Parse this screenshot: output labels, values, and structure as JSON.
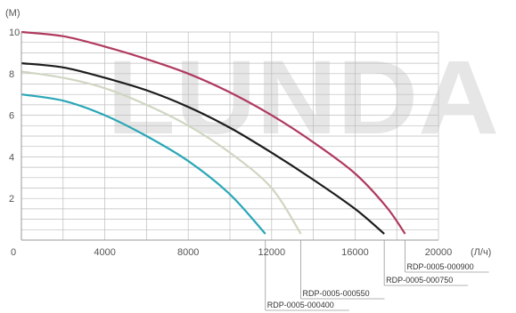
{
  "watermark": "LUNDA",
  "chart_data": {
    "type": "line",
    "y_unit": "(М)",
    "x_unit": "(Л/ч)",
    "xlim": [
      0,
      20000
    ],
    "ylim": [
      0,
      10
    ],
    "grid": true,
    "x_ticks": [
      "0",
      "4000",
      "8000",
      "12000",
      "16000",
      "20000"
    ],
    "x_tick_values": [
      0,
      4000,
      8000,
      12000,
      16000,
      20000
    ],
    "y_ticks": [
      "2",
      "4",
      "6",
      "8",
      "10"
    ],
    "y_tick_values": [
      2,
      4,
      6,
      8,
      10
    ],
    "series": [
      {
        "name": "RDP-0005-000400",
        "color": "#2aa7b7",
        "points": [
          [
            0,
            7.0
          ],
          [
            2000,
            6.7
          ],
          [
            4000,
            6.0
          ],
          [
            6000,
            5.0
          ],
          [
            8000,
            3.8
          ],
          [
            10000,
            2.2
          ],
          [
            11700,
            0.3
          ]
        ]
      },
      {
        "name": "RDP-0005-000550",
        "color": "#cfd6c2",
        "points": [
          [
            0,
            8.1
          ],
          [
            2000,
            7.8
          ],
          [
            4000,
            7.3
          ],
          [
            6000,
            6.5
          ],
          [
            8000,
            5.5
          ],
          [
            10000,
            4.2
          ],
          [
            12000,
            2.5
          ],
          [
            13400,
            0.3
          ]
        ]
      },
      {
        "name": "RDP-0005-000750",
        "color": "#1c1c1c",
        "points": [
          [
            0,
            8.5
          ],
          [
            2000,
            8.3
          ],
          [
            4000,
            7.8
          ],
          [
            6000,
            7.2
          ],
          [
            8000,
            6.4
          ],
          [
            10000,
            5.4
          ],
          [
            12000,
            4.2
          ],
          [
            14000,
            2.9
          ],
          [
            16000,
            1.5
          ],
          [
            17400,
            0.3
          ]
        ]
      },
      {
        "name": "RDP-0005-000900",
        "color": "#b03a5e",
        "points": [
          [
            0,
            10.0
          ],
          [
            2000,
            9.8
          ],
          [
            4000,
            9.3
          ],
          [
            6000,
            8.7
          ],
          [
            8000,
            8.0
          ],
          [
            10000,
            7.1
          ],
          [
            12000,
            6.0
          ],
          [
            14000,
            4.7
          ],
          [
            16000,
            3.2
          ],
          [
            17500,
            1.6
          ],
          [
            18400,
            0.3
          ]
        ]
      }
    ]
  }
}
